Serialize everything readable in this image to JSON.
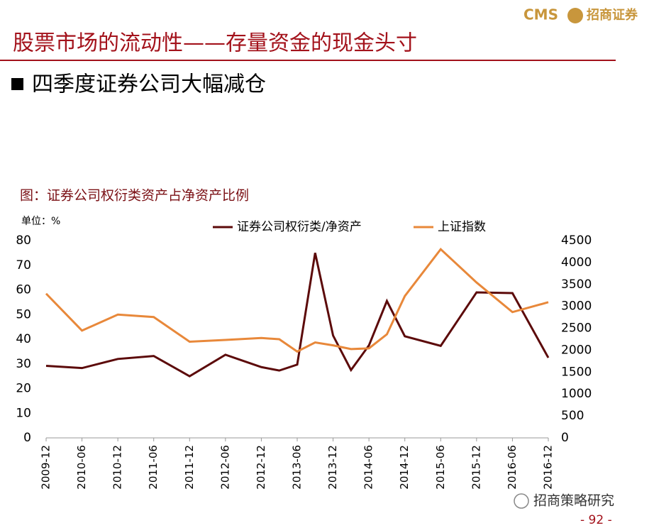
{
  "header": {
    "logo_brand": "CMS",
    "logo_name": "招商证券",
    "title": "股票市场的流动性——存量资金的现金头寸",
    "subtitle": "四季度证券公司大幅减仓"
  },
  "footer": {
    "source": "招商策略研究",
    "page": "- 92 -"
  },
  "chart_data": {
    "type": "line",
    "title": "图：证券公司权衍类资产占净资产比例",
    "unit_label": "单位：%",
    "categories": [
      "2009-12",
      null,
      "2010-06",
      null,
      "2010-12",
      null,
      "2011-06",
      null,
      "2011-12",
      null,
      "2012-06",
      null,
      "2012-12",
      null,
      "2013-06",
      null,
      "2013-12",
      null,
      "2014-06",
      null,
      "2014-12",
      null,
      "2015-06",
      null,
      "2015-12",
      null,
      "2016-06",
      null,
      "2016-12"
    ],
    "series": [
      {
        "name": "证券公司权衍类/净资产",
        "color": "#5c0a0a",
        "values": [
          29.2,
          null,
          28.3,
          null,
          32,
          null,
          33.2,
          null,
          25,
          null,
          33.7,
          null,
          28.7,
          27.3,
          29.7,
          75,
          41.5,
          27.5,
          37.5,
          55.5,
          41.2,
          null,
          37.3,
          null,
          59,
          null,
          58.7,
          null,
          32.5
        ]
      },
      {
        "name": "上证指数",
        "color": "#e8883a",
        "axis": "y2",
        "values": [
          3290,
          null,
          2447,
          null,
          2812,
          null,
          2756,
          null,
          2194,
          null,
          2233,
          null,
          2278,
          2250,
          1969,
          2177,
          2110,
          2025,
          2042,
          2362,
          3234,
          null,
          4303,
          null,
          3544,
          null,
          2869,
          null,
          3094
        ]
      }
    ],
    "ylim": [
      0,
      80
    ],
    "yticks": [
      0,
      10,
      20,
      30,
      40,
      50,
      60,
      70,
      80
    ],
    "y2lim": [
      0,
      4500
    ],
    "y2ticks": [
      0,
      500,
      1000,
      1500,
      2000,
      2500,
      3000,
      3500,
      4000,
      4500
    ],
    "grid": false
  }
}
